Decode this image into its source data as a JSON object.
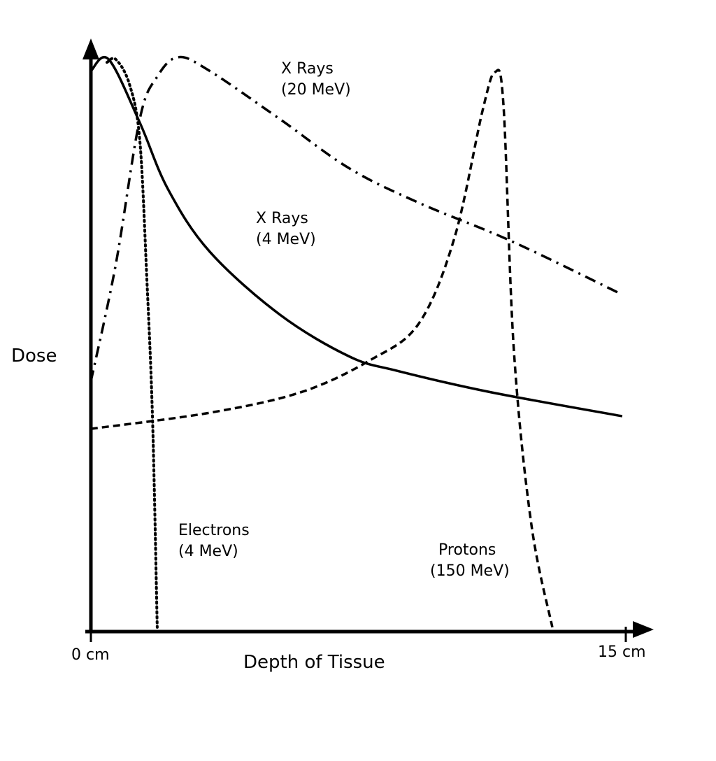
{
  "chart_data": {
    "type": "line",
    "title": "",
    "xlabel": "Depth of Tissue",
    "ylabel": "Dose",
    "x_unit": "cm",
    "xlim": [
      0,
      15
    ],
    "ylim": [
      0,
      100
    ],
    "x_tick_labels": [
      "0 cm",
      "15 cm"
    ],
    "y_tick_labels": [],
    "grid": false,
    "legend": "none (curves labeled directly)",
    "series": [
      {
        "name": "X Rays (4 MeV)",
        "label_lines": [
          "X Rays",
          "(4 MeV)"
        ],
        "style": "solid",
        "x": [
          0,
          0.5,
          1.37,
          2.16,
          3.33,
          5.3,
          7.25,
          8.6,
          11.2,
          14.9
        ],
        "y": [
          98,
          100,
          89,
          77.4,
          66.5,
          55.5,
          48.2,
          45.7,
          42,
          37.8
        ]
      },
      {
        "name": "Electrons (4 MeV)",
        "label_lines": [
          "Electrons",
          "(4 MeV)"
        ],
        "style": "dotted",
        "x": [
          0.45,
          0.7,
          1.08,
          1.37,
          1.57,
          1.73,
          1.86
        ],
        "y": [
          99.5,
          100,
          95.7,
          86,
          61.6,
          37,
          1
        ]
      },
      {
        "name": "X Rays (20 MeV)",
        "label_lines": [
          "X Rays",
          "(20 MeV)"
        ],
        "style": "dash-dot",
        "x": [
          0,
          0.69,
          1.37,
          1.86,
          2.45,
          3.33,
          5.3,
          7.25,
          9.2,
          11.8,
          14.9
        ],
        "y": [
          43.9,
          64,
          89.6,
          97,
          100.4,
          98,
          89.6,
          81,
          75,
          68.3,
          59
        ]
      },
      {
        "name": "Protons (150 MeV)",
        "label_lines": [
          "Protons",
          "(150 MeV)"
        ],
        "style": "dashed",
        "x": [
          0,
          3.33,
          5.9,
          7.84,
          9.2,
          10.2,
          10.98,
          11.33,
          11.57,
          11.86,
          12.35,
          12.94
        ],
        "y": [
          35.6,
          38.4,
          42,
          47.6,
          54,
          69,
          91,
          97.8,
          92,
          49.4,
          19,
          1
        ]
      }
    ]
  }
}
